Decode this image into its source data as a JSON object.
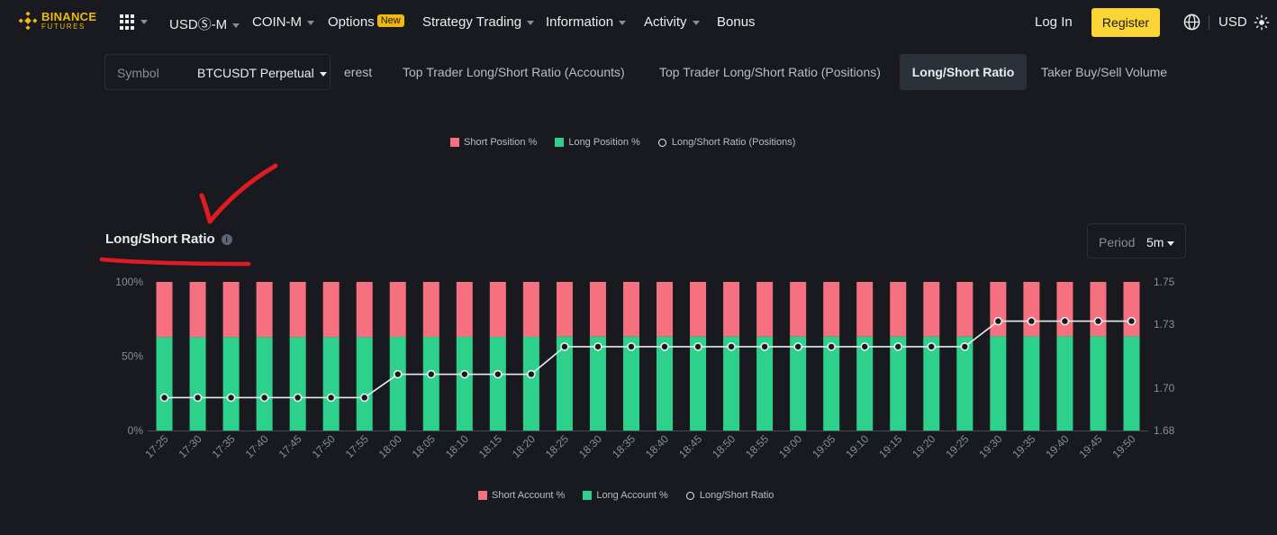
{
  "nav": {
    "logo_top": "BINANCE",
    "logo_bottom": "FUTURES",
    "items": [
      "USDⓈ-M",
      "COIN-M",
      "Options",
      "Strategy Trading",
      "Information",
      "Activity",
      "Bonus"
    ],
    "options_badge": "New",
    "login": "Log In",
    "register": "Register",
    "currency": "USD"
  },
  "toolbar": {
    "symbol_label": "Symbol",
    "symbol_value": "BTCUSDT Perpetual",
    "tabs": [
      "erest",
      "Top Trader Long/Short Ratio (Accounts)",
      "Top Trader Long/Short Ratio (Positions)",
      "Long/Short Ratio",
      "Taker Buy/Sell Volume"
    ]
  },
  "top_legend": {
    "short": "Short Position %",
    "long": "Long Position %",
    "ratio": "Long/Short Ratio (Positions)"
  },
  "chart_section": {
    "title": "Long/Short Ratio",
    "info": "i",
    "period_label": "Period",
    "period_value": "5m"
  },
  "bottom_legend": {
    "short": "Short Account %",
    "long": "Long Account %",
    "ratio": "Long/Short Ratio"
  },
  "colors": {
    "short": "#f6717f",
    "long": "#2ed18b",
    "line": "#eaecef",
    "brand": "#f0b90b",
    "annotation": "#e01b24"
  },
  "chart_data": {
    "type": "bar",
    "title": "Long/Short Ratio",
    "categories": [
      "17:25",
      "17:30",
      "17:35",
      "17:40",
      "17:45",
      "17:50",
      "17:55",
      "18:00",
      "18:05",
      "18:10",
      "18:15",
      "18:20",
      "18:25",
      "18:30",
      "18:35",
      "18:40",
      "18:45",
      "18:50",
      "18:55",
      "19:00",
      "19:05",
      "19:10",
      "19:15",
      "19:20",
      "19:25",
      "19:30",
      "19:35",
      "19:40",
      "19:45",
      "19:50"
    ],
    "series": [
      {
        "name": "Long Account %",
        "axis": "left",
        "values": [
          62.8,
          62.8,
          62.8,
          62.8,
          62.8,
          62.8,
          62.8,
          63.0,
          63.0,
          63.0,
          63.0,
          63.0,
          63.2,
          63.2,
          63.2,
          63.2,
          63.2,
          63.2,
          63.2,
          63.2,
          63.2,
          63.2,
          63.2,
          63.2,
          63.2,
          63.4,
          63.4,
          63.4,
          63.4,
          63.4
        ]
      },
      {
        "name": "Short Account %",
        "axis": "left",
        "values": [
          37.2,
          37.2,
          37.2,
          37.2,
          37.2,
          37.2,
          37.2,
          37.0,
          37.0,
          37.0,
          37.0,
          37.0,
          36.8,
          36.8,
          36.8,
          36.8,
          36.8,
          36.8,
          36.8,
          36.8,
          36.8,
          36.8,
          36.8,
          36.8,
          36.8,
          36.6,
          36.6,
          36.6,
          36.6,
          36.6
        ]
      },
      {
        "name": "Long/Short Ratio",
        "axis": "right",
        "type": "line",
        "values": [
          1.6955,
          1.6955,
          1.6955,
          1.6955,
          1.6955,
          1.6955,
          1.6955,
          1.7065,
          1.7065,
          1.7065,
          1.7065,
          1.7065,
          1.7195,
          1.7195,
          1.7195,
          1.7195,
          1.7195,
          1.7195,
          1.7195,
          1.7195,
          1.7195,
          1.7195,
          1.7195,
          1.7195,
          1.7195,
          1.7315,
          1.7315,
          1.7315,
          1.7315,
          1.7315
        ]
      }
    ],
    "y_left": {
      "min": 0,
      "max": 100,
      "ticks": [
        "0%",
        "50%",
        "100%"
      ]
    },
    "y_right": {
      "min": 1.68,
      "max": 1.75,
      "ticks": [
        "1.68",
        "1.70",
        "1.73",
        "1.75"
      ]
    }
  }
}
